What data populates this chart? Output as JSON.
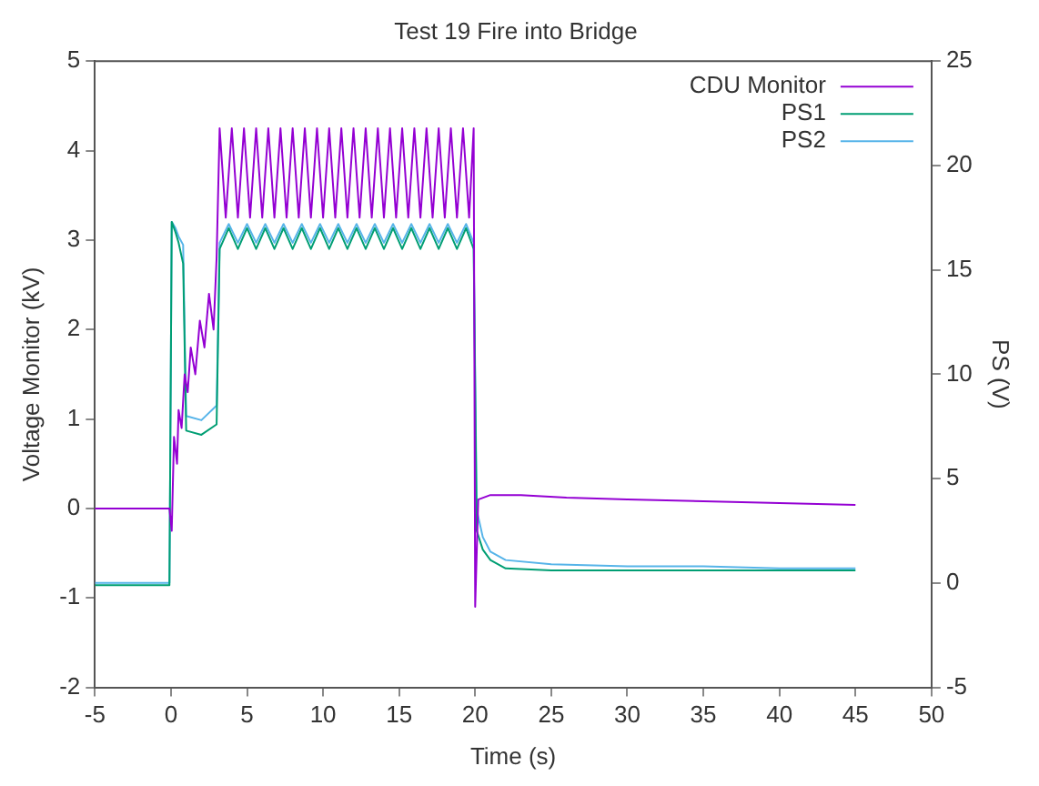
{
  "chart_data": {
    "type": "line",
    "title": "Test 19 Fire into Bridge",
    "xlabel": "Time (s)",
    "ylabel": "Voltage Monitor (kV)",
    "y2label": "PS (V)",
    "xlim": [
      -5,
      50
    ],
    "xticks": [
      -5,
      0,
      5,
      10,
      15,
      20,
      25,
      30,
      35,
      40,
      45,
      50
    ],
    "ylim": [
      -2,
      5
    ],
    "yticks": [
      -2,
      -1,
      0,
      1,
      2,
      3,
      4,
      5
    ],
    "y2lim": [
      -5,
      25
    ],
    "y2ticks": [
      -5,
      0,
      5,
      10,
      15,
      20,
      25
    ],
    "grid": false,
    "legend": "top right",
    "marker": "none",
    "line_style": "solid",
    "series": [
      {
        "name": "CDU Monitor",
        "color": "#9400d3",
        "x": [
          -5,
          -0.1,
          0.05,
          0.2,
          0.4,
          0.5,
          0.7,
          0.9,
          1.1,
          1.3,
          1.6,
          1.9,
          2.2,
          2.5,
          2.8,
          3.0,
          3.2,
          3.6,
          4.0,
          4.4,
          4.8,
          5.2,
          5.6,
          6.0,
          6.4,
          6.8,
          7.2,
          7.6,
          8.0,
          8.4,
          8.8,
          9.2,
          9.6,
          10.0,
          10.4,
          10.8,
          11.2,
          11.6,
          12.0,
          12.4,
          12.8,
          13.2,
          13.6,
          14.0,
          14.4,
          14.8,
          15.2,
          15.6,
          16.0,
          16.4,
          16.8,
          17.2,
          17.6,
          18.0,
          18.4,
          18.8,
          19.2,
          19.6,
          19.9,
          20.0,
          20.2,
          21,
          23,
          26,
          30,
          35,
          40,
          45
        ],
        "values": [
          0,
          0,
          -0.25,
          0.8,
          0.5,
          1.1,
          0.9,
          1.5,
          1.3,
          1.8,
          1.5,
          2.1,
          1.8,
          2.4,
          2.0,
          2.8,
          4.25,
          3.25,
          4.25,
          3.25,
          4.25,
          3.25,
          4.25,
          3.25,
          4.25,
          3.25,
          4.25,
          3.25,
          4.25,
          3.25,
          4.25,
          3.25,
          4.25,
          3.25,
          4.25,
          3.25,
          4.25,
          3.25,
          4.25,
          3.25,
          4.25,
          3.25,
          4.25,
          3.25,
          4.25,
          3.25,
          4.25,
          3.25,
          4.25,
          3.25,
          4.25,
          3.25,
          4.25,
          3.25,
          4.25,
          3.25,
          4.25,
          3.25,
          4.25,
          -1.1,
          0.1,
          0.15,
          0.15,
          0.12,
          0.1,
          0.08,
          0.06,
          0.04
        ]
      },
      {
        "name": "PS1",
        "color": "#009e73",
        "axis": "y2",
        "x": [
          -5,
          -0.1,
          0.05,
          0.3,
          0.5,
          0.8,
          1.0,
          2.0,
          3.0,
          3.2,
          3.8,
          4.4,
          5.0,
          5.6,
          6.2,
          6.8,
          7.4,
          8.0,
          8.6,
          9.2,
          9.8,
          10.4,
          11.0,
          11.6,
          12.2,
          12.8,
          13.4,
          14.0,
          14.6,
          15.2,
          15.8,
          16.4,
          17.0,
          17.6,
          18.2,
          18.8,
          19.4,
          19.9,
          20.1,
          20.5,
          21,
          22,
          25,
          30,
          35,
          40,
          45
        ],
        "values": [
          -0.1,
          -0.1,
          17.3,
          16.8,
          16.3,
          15.3,
          7.3,
          7.1,
          7.6,
          16.0,
          17.0,
          16.0,
          17.0,
          16.0,
          17.0,
          16.0,
          17.0,
          16.0,
          17.0,
          16.0,
          17.0,
          16.0,
          17.0,
          16.0,
          17.0,
          16.0,
          17.0,
          16.0,
          17.0,
          16.0,
          17.0,
          16.0,
          17.0,
          16.0,
          17.0,
          16.0,
          17.0,
          16.0,
          2.5,
          1.6,
          1.1,
          0.7,
          0.6,
          0.6,
          0.6,
          0.6,
          0.6
        ]
      },
      {
        "name": "PS2",
        "color": "#56b4e9",
        "axis": "y2",
        "x": [
          -5,
          -0.1,
          0.05,
          0.3,
          0.5,
          0.8,
          1.0,
          2.0,
          3.0,
          3.2,
          3.8,
          4.4,
          5.0,
          5.6,
          6.2,
          6.8,
          7.4,
          8.0,
          8.6,
          9.2,
          9.8,
          10.4,
          11.0,
          11.6,
          12.2,
          12.8,
          13.4,
          14.0,
          14.6,
          15.2,
          15.8,
          16.4,
          17.0,
          17.6,
          18.2,
          18.8,
          19.4,
          19.9,
          20.1,
          20.5,
          21,
          22,
          25,
          30,
          35,
          40,
          45
        ],
        "values": [
          0,
          0,
          17.3,
          17.0,
          16.6,
          16.2,
          8.0,
          7.8,
          8.5,
          16.3,
          17.2,
          16.3,
          17.2,
          16.3,
          17.2,
          16.3,
          17.2,
          16.3,
          17.2,
          16.3,
          17.2,
          16.3,
          17.2,
          16.3,
          17.2,
          16.3,
          17.2,
          16.3,
          17.2,
          16.3,
          17.2,
          16.3,
          17.2,
          16.3,
          17.2,
          16.3,
          17.2,
          16.3,
          3.5,
          2.2,
          1.5,
          1.1,
          0.9,
          0.8,
          0.8,
          0.7,
          0.7
        ]
      }
    ]
  }
}
